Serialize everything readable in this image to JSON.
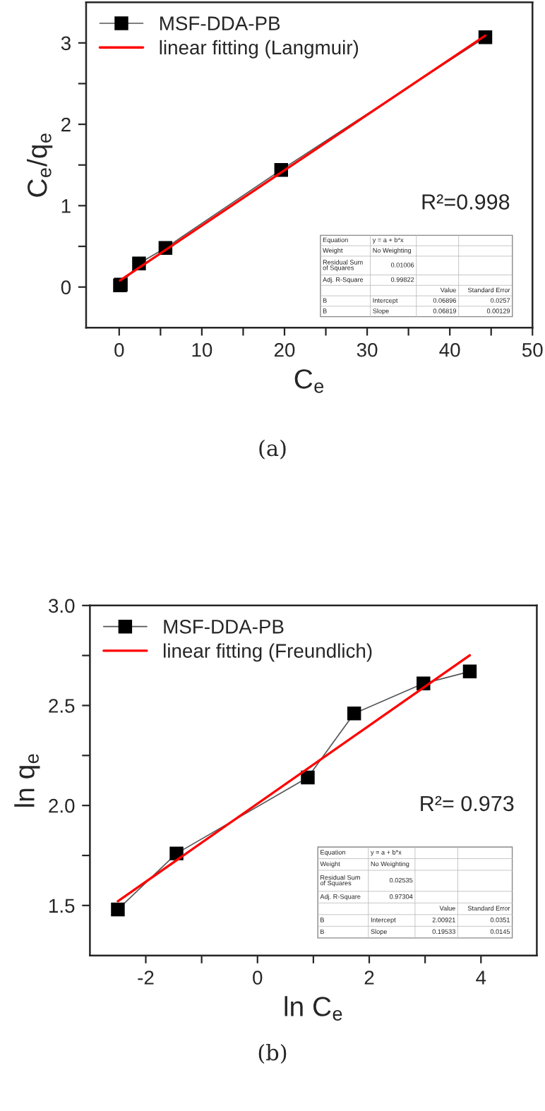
{
  "chart_data": [
    {
      "type": "line",
      "title": "(a)",
      "xlabel": "C$_{e}$",
      "ylabel": "C$_{e}$/q$_{e}$",
      "xlim": [
        -4,
        50
      ],
      "ylim": [
        -0.5,
        3.5
      ],
      "xticks": [
        0,
        {
          "value": 5,
          "label": null
        },
        10,
        {
          "value": 15,
          "label": null
        },
        20,
        {
          "value": 25,
          "label": null
        },
        30,
        {
          "value": 35,
          "label": null
        },
        40,
        {
          "value": 45,
          "label": null
        },
        50
      ],
      "yticks": [
        0,
        {
          "value": 0.5,
          "label": null
        },
        1,
        {
          "value": 1.5,
          "label": null
        },
        2,
        {
          "value": 2.5,
          "label": null
        },
        3
      ],
      "series": [
        {
          "name": "MSF-DDA-PB",
          "color": "#000000",
          "marker": "square",
          "x": [
            0.1,
            0.2,
            2.4,
            5.6,
            19.6,
            44.3
          ],
          "values": [
            0.02,
            0.03,
            0.29,
            0.48,
            1.44,
            3.07
          ]
        },
        {
          "name": "linear fitting (Langmuir)",
          "color": "#ff0000",
          "marker": "none",
          "x": [
            0.1,
            44.3
          ],
          "values": [
            0.08,
            3.09
          ]
        }
      ],
      "legend": "top left",
      "annotations": [
        "R²=0.998",
        "Equation",
        "y = a + b*x",
        "Weight",
        "No Weighting",
        "Residual Sum\nof Squares",
        "0.01006",
        "Adj. R-Square",
        "0.99822",
        "Value",
        "Standard Error",
        "B",
        "Intercept",
        "0.06896",
        "0.0257",
        "B",
        "Slope",
        "0.06819",
        "0.00129"
      ]
    },
    {
      "type": "line",
      "title": "(b)",
      "xlabel": "ln C$_{e}$",
      "ylabel": "ln q$_{e}$",
      "xlim": [
        -3,
        5
      ],
      "ylim": [
        1.25,
        3.0
      ],
      "xticks": [
        -2,
        {
          "value": -1,
          "label": null
        },
        0,
        {
          "value": 1,
          "label": null
        },
        2,
        {
          "value": 3,
          "label": null
        },
        4
      ],
      "yticks": [
        1.5,
        {
          "value": 1.75,
          "label": null
        },
        {
          "value": 2,
          "label": "2.0"
        },
        {
          "value": 2.25,
          "label": null
        },
        2.5,
        {
          "value": 2.75,
          "label": null
        },
        {
          "value": 3,
          "label": "3.0"
        }
      ],
      "series": [
        {
          "name": "MSF-DDA-PB",
          "color": "#000000",
          "marker": "square",
          "x": [
            -2.5,
            -1.45,
            0.9,
            1.73,
            2.97,
            3.8
          ],
          "values": [
            1.48,
            1.76,
            2.14,
            2.46,
            2.61,
            2.67
          ]
        },
        {
          "name": "linear fitting (Freundlich)",
          "color": "#ff0000",
          "marker": "none",
          "x": [
            -2.5,
            3.8
          ],
          "values": [
            1.521,
            2.751
          ]
        }
      ],
      "legend": "top left",
      "annotations": [
        "R²= 0.973",
        "Equation",
        "y = a + b*x",
        "Weight",
        "No Weighting",
        "Residual Sum\nof Squares",
        "0.02535",
        "Adj. R-Square",
        "0.97304",
        "Value",
        "Standard Error",
        "B",
        "Intercept",
        "2.00921",
        "0.0351",
        "B",
        "Slope",
        "0.19533",
        "0.0145"
      ]
    }
  ]
}
